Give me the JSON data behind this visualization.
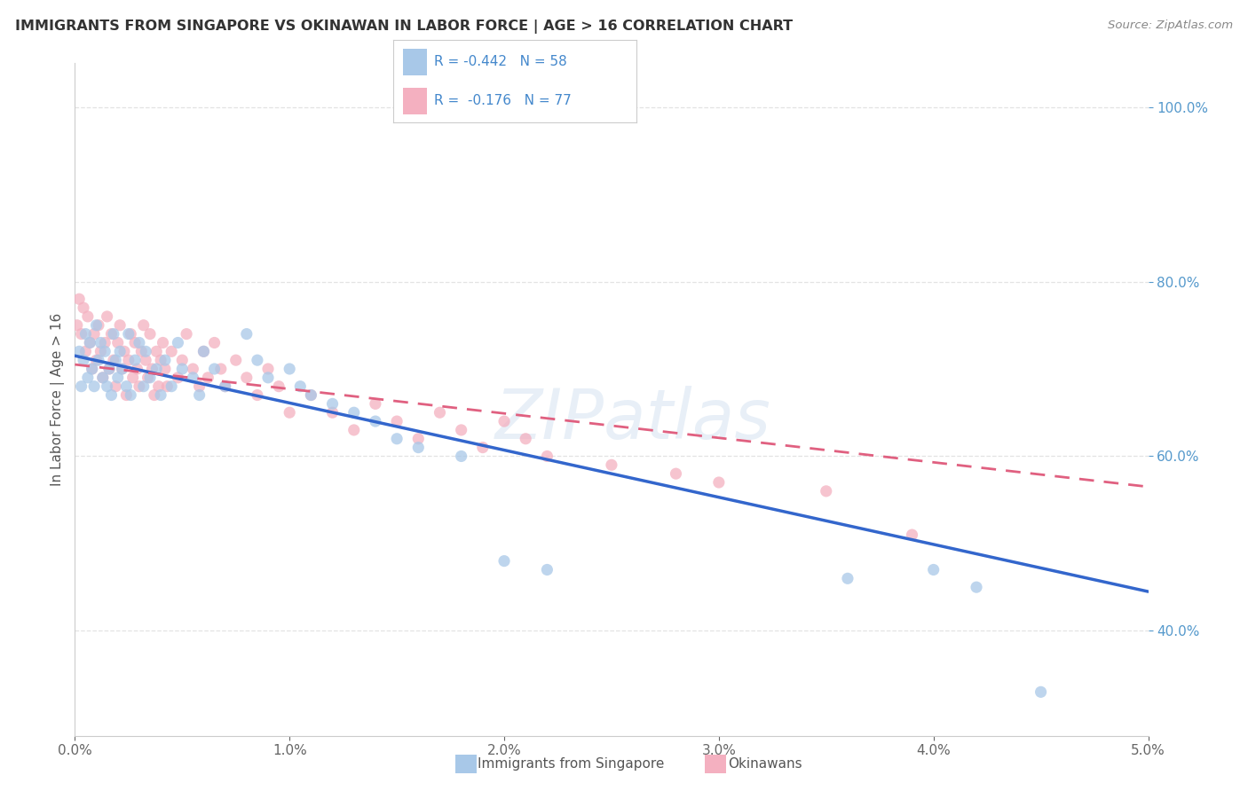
{
  "title": "IMMIGRANTS FROM SINGAPORE VS OKINAWAN IN LABOR FORCE | AGE > 16 CORRELATION CHART",
  "source": "Source: ZipAtlas.com",
  "ylabel": "In Labor Force | Age > 16",
  "watermark": "ZIPatlas",
  "xlim": [
    0.0,
    5.0
  ],
  "ylim": [
    28.0,
    105.0
  ],
  "blue_color": "#a8c8e8",
  "pink_color": "#f4b0c0",
  "trend_blue": "#3366cc",
  "trend_pink": "#e06080",
  "axis_label_color": "#5599cc",
  "grid_color": "#dddddd",
  "title_color": "#333333",
  "source_color": "#888888",
  "legend_label_color": "#4488cc",
  "R_singapore": -0.442,
  "N_singapore": 58,
  "R_okinawan": -0.176,
  "N_okinawan": 77,
  "singapore_x": [
    0.02,
    0.03,
    0.04,
    0.05,
    0.06,
    0.07,
    0.08,
    0.09,
    0.1,
    0.11,
    0.12,
    0.13,
    0.14,
    0.15,
    0.16,
    0.17,
    0.18,
    0.19,
    0.2,
    0.21,
    0.22,
    0.24,
    0.25,
    0.26,
    0.28,
    0.3,
    0.32,
    0.33,
    0.35,
    0.38,
    0.4,
    0.42,
    0.45,
    0.48,
    0.5,
    0.55,
    0.58,
    0.6,
    0.65,
    0.7,
    0.8,
    0.85,
    0.9,
    1.0,
    1.05,
    1.1,
    1.2,
    1.3,
    1.4,
    1.5,
    1.6,
    1.8,
    2.0,
    2.2,
    3.6,
    4.0,
    4.2,
    4.5
  ],
  "singapore_y": [
    72,
    68,
    71,
    74,
    69,
    73,
    70,
    68,
    75,
    71,
    73,
    69,
    72,
    68,
    70,
    67,
    74,
    71,
    69,
    72,
    70,
    68,
    74,
    67,
    71,
    73,
    68,
    72,
    69,
    70,
    67,
    71,
    68,
    73,
    70,
    69,
    67,
    72,
    70,
    68,
    74,
    71,
    69,
    70,
    68,
    67,
    66,
    65,
    64,
    62,
    61,
    60,
    48,
    47,
    46,
    47,
    45,
    33
  ],
  "okinawan_x": [
    0.01,
    0.02,
    0.03,
    0.04,
    0.05,
    0.06,
    0.07,
    0.08,
    0.09,
    0.1,
    0.11,
    0.12,
    0.13,
    0.14,
    0.15,
    0.16,
    0.17,
    0.18,
    0.19,
    0.2,
    0.21,
    0.22,
    0.23,
    0.24,
    0.25,
    0.26,
    0.27,
    0.28,
    0.29,
    0.3,
    0.31,
    0.32,
    0.33,
    0.34,
    0.35,
    0.36,
    0.37,
    0.38,
    0.39,
    0.4,
    0.41,
    0.42,
    0.43,
    0.45,
    0.48,
    0.5,
    0.52,
    0.55,
    0.58,
    0.6,
    0.62,
    0.65,
    0.68,
    0.7,
    0.75,
    0.8,
    0.85,
    0.9,
    0.95,
    1.0,
    1.1,
    1.2,
    1.3,
    1.4,
    1.5,
    1.6,
    1.7,
    1.8,
    1.9,
    2.0,
    2.1,
    2.2,
    2.5,
    2.8,
    3.0,
    3.5,
    3.9
  ],
  "okinawan_y": [
    75,
    78,
    74,
    77,
    72,
    76,
    73,
    70,
    74,
    71,
    75,
    72,
    69,
    73,
    76,
    70,
    74,
    71,
    68,
    73,
    75,
    70,
    72,
    67,
    71,
    74,
    69,
    73,
    70,
    68,
    72,
    75,
    71,
    69,
    74,
    70,
    67,
    72,
    68,
    71,
    73,
    70,
    68,
    72,
    69,
    71,
    74,
    70,
    68,
    72,
    69,
    73,
    70,
    68,
    71,
    69,
    67,
    70,
    68,
    65,
    67,
    65,
    63,
    66,
    64,
    62,
    65,
    63,
    61,
    64,
    62,
    60,
    59,
    58,
    57,
    56,
    51
  ],
  "trend_singapore_x0": 0.0,
  "trend_singapore_y0": 71.5,
  "trend_singapore_x1": 5.0,
  "trend_singapore_y1": 44.5,
  "trend_okinawan_x0": 0.0,
  "trend_okinawan_y0": 70.5,
  "trend_okinawan_x1": 5.0,
  "trend_okinawan_y1": 56.5
}
